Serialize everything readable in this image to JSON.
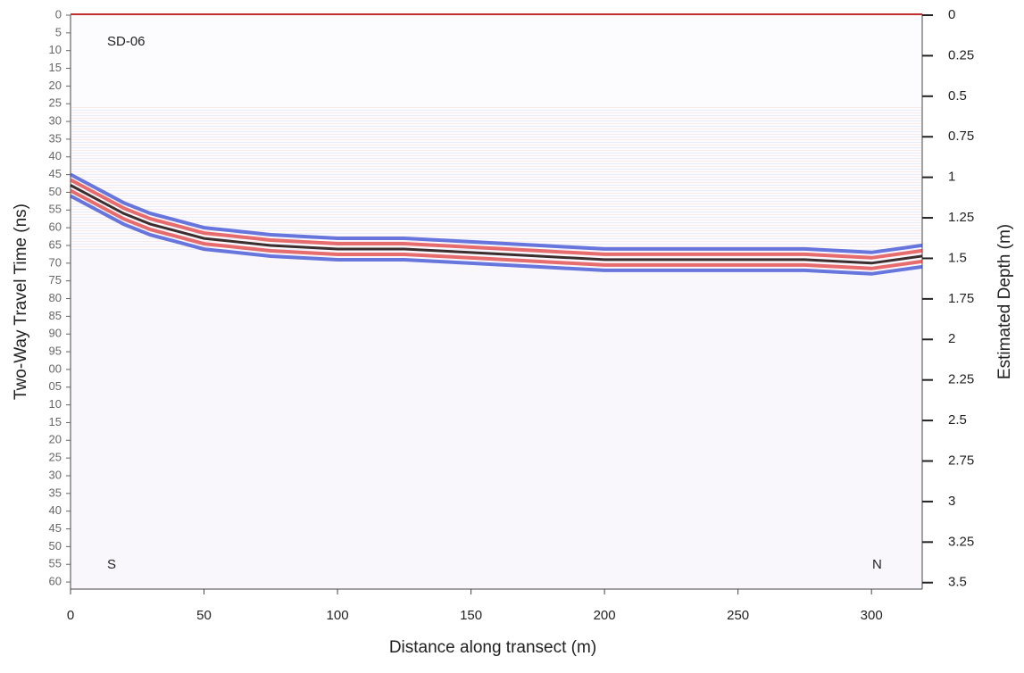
{
  "chart_data": {
    "type": "radargram",
    "xlabel": "Distance along transect  (m)",
    "ylabel": "Two-Way Travel Time (ns)",
    "y2label": "Estimated Depth (m)",
    "annotations": [
      "SD-06",
      "S",
      "N"
    ],
    "xlim": [
      0,
      319
    ],
    "xticks": [
      0,
      50,
      100,
      150,
      200,
      250,
      300
    ],
    "ylim": [
      0,
      162
    ],
    "yticks": [
      0,
      5,
      10,
      15,
      20,
      25,
      30,
      35,
      40,
      45,
      50,
      55,
      60,
      65,
      70,
      75,
      80,
      85,
      90,
      95,
      {
        "value": 100,
        "label": "00"
      },
      {
        "value": 105,
        "label": "05"
      },
      {
        "value": 110,
        "label": "10"
      },
      {
        "value": 115,
        "label": "15"
      },
      {
        "value": 120,
        "label": "20"
      },
      {
        "value": 125,
        "label": "25"
      },
      {
        "value": 130,
        "label": "30"
      },
      {
        "value": 135,
        "label": "35"
      },
      {
        "value": 140,
        "label": "40"
      },
      {
        "value": 145,
        "label": "45"
      },
      {
        "value": 150,
        "label": "50"
      },
      {
        "value": 155,
        "label": "55"
      },
      {
        "value": 160,
        "label": "60"
      }
    ],
    "y2lim": [
      0,
      3.54
    ],
    "y2ticks": [
      0,
      0.25,
      0.5,
      0.75,
      1,
      1.25,
      1.5,
      1.75,
      2,
      2.25,
      2.5,
      2.75,
      3,
      3.25,
      3.5
    ],
    "reflector": {
      "x": [
        0,
        10,
        20,
        30,
        40,
        50,
        75,
        100,
        125,
        150,
        175,
        200,
        225,
        250,
        275,
        300,
        319
      ],
      "values": [
        48,
        52,
        56,
        59,
        61,
        63,
        65,
        66,
        66,
        67,
        68,
        69,
        69,
        69,
        69,
        70,
        68
      ],
      "colors": [
        "#2a3fd0",
        "#e03030",
        "#1a0a0a",
        "#e03030",
        "#2a3fd0"
      ]
    }
  }
}
